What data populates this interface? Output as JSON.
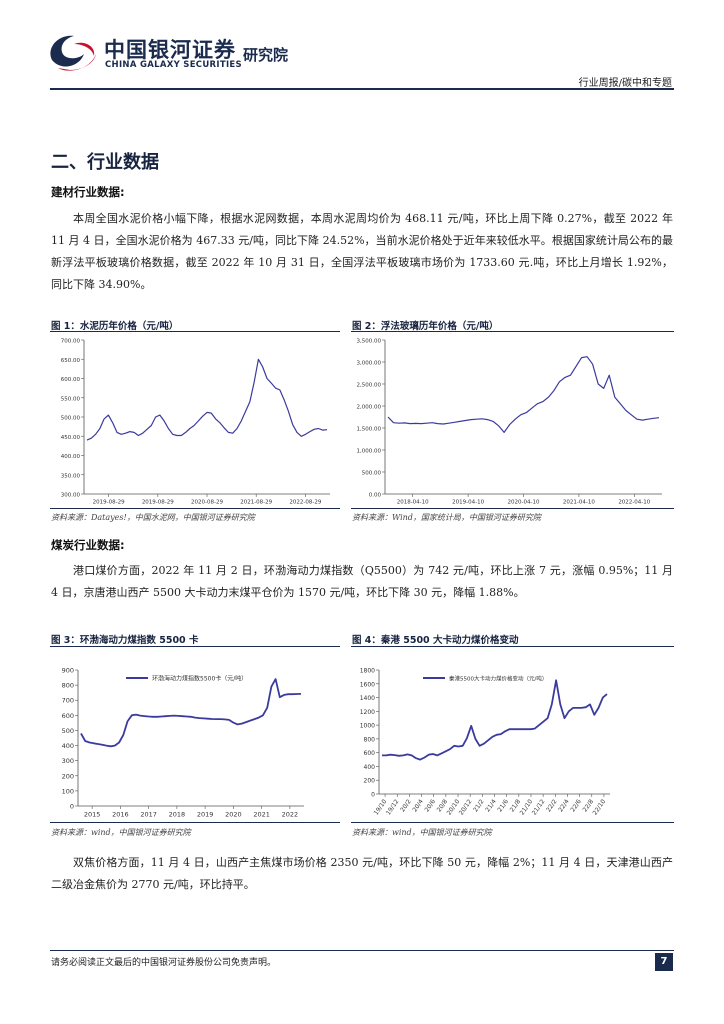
{
  "header": {
    "company_cn": "中国银河证券",
    "company_en": "CHINA GALAXY SECURITIES",
    "institute": "研究院",
    "report_type": "行业周报/碳中和专题"
  },
  "section_title": "二、行业数据",
  "building": {
    "heading": "建材行业数据:",
    "para": "本周全国水泥价格小幅下降，根据水泥网数据，本周水泥周均价为 468.11 元/吨，环比上周下降 0.27%，截至 2022 年 11 月 4 日，全国水泥价格为 467.33 元/吨，同比下降 24.52%，当前水泥价格处于近年来较低水平。根据国家统计局公布的最新浮法平板玻璃价格数据，截至 2022 年 10 月 31 日，全国浮法平板玻璃市场价为 1733.60 元.吨，环比上月增长 1.92%，同比下降 34.90%。"
  },
  "fig1": {
    "title": "图 1：水泥历年价格（元/吨）",
    "source": "资料来源：Datayes!，中国水泥网，中国银河证券研究院"
  },
  "fig2": {
    "title": "图 2：浮法玻璃历年价格（元/吨）",
    "source": "资料来源：Wind，国家统计局，中国银河证券研究院"
  },
  "coal": {
    "heading": "煤炭行业数据:",
    "para": "港口煤价方面，2022 年 11 月 2 日，环渤海动力煤指数（Q5500）为 742 元/吨，环比上涨 7 元，涨幅 0.95%；11 月 4 日，京唐港山西产 5500 大卡动力末煤平仓价为 1570 元/吨，环比下降 30 元，降幅 1.88%。"
  },
  "fig3": {
    "title": "图 3：环渤海动力煤指数 5500 卡",
    "source": "资料来源：wind，中国银河证券研究院"
  },
  "fig4": {
    "title": "图 4：秦港 5500 大卡动力煤价格变动",
    "source": "资料来源：wind，中国银河证券研究院"
  },
  "coke": {
    "para": "双焦价格方面，11 月 4 日，山西产主焦煤市场价格 2350 元/吨，环比下降 50 元，降幅 2%；11 月 4 日，天津港山西产二级冶金焦价为 2770 元/吨，环比持平。"
  },
  "footer": {
    "disclaimer": "请务必阅读正文最后的中国银河证券股份公司免责声明。",
    "page": "7"
  },
  "colors": {
    "brand": "#1b2b4e",
    "accent_red": "#c8102e",
    "series": "#3b3b9e"
  },
  "chart_data": [
    {
      "type": "line",
      "ylim": [
        300,
        700
      ],
      "yticks": [
        "300.00",
        "350.00",
        "400.00",
        "450.00",
        "500.00",
        "550.00",
        "600.00",
        "650.00",
        "700.00"
      ],
      "xticks": [
        "2019-08-29",
        "2019-08-29",
        "2020-08-29",
        "2021-08-29",
        "2022-08-29"
      ],
      "series": [
        {
          "values": [
            440,
            445,
            455,
            470,
            495,
            505,
            485,
            460,
            455,
            458,
            462,
            460,
            452,
            458,
            468,
            478,
            500,
            505,
            490,
            470,
            455,
            452,
            452,
            460,
            470,
            478,
            490,
            502,
            512,
            510,
            495,
            485,
            472,
            460,
            458,
            470,
            490,
            515,
            540,
            590,
            650,
            630,
            600,
            588,
            575,
            570,
            545,
            515,
            480,
            460,
            450,
            455,
            462,
            468,
            470,
            466,
            467
          ]
        }
      ]
    },
    {
      "type": "line",
      "ylim": [
        0,
        3500
      ],
      "yticks": [
        "0.00",
        "500.00",
        "1,000.00",
        "1,500.00",
        "2,000.00",
        "2,500.00",
        "3,000.00",
        "3,500.00"
      ],
      "xticks": [
        "2018-04-10",
        "2019-04-10",
        "2020-04-10",
        "2021-04-10",
        "2022-04-10"
      ],
      "series": [
        {
          "values": [
            1750,
            1620,
            1610,
            1615,
            1600,
            1605,
            1600,
            1610,
            1620,
            1600,
            1590,
            1610,
            1630,
            1650,
            1670,
            1690,
            1700,
            1710,
            1690,
            1650,
            1550,
            1400,
            1580,
            1700,
            1800,
            1850,
            1950,
            2050,
            2100,
            2200,
            2350,
            2550,
            2650,
            2700,
            2900,
            3100,
            3120,
            2950,
            2500,
            2400,
            2700,
            2200,
            2050,
            1900,
            1800,
            1700,
            1680,
            1700,
            1720,
            1734
          ]
        }
      ]
    },
    {
      "type": "line",
      "ylim": [
        0,
        900
      ],
      "yticks": [
        "0",
        "100",
        "200",
        "300",
        "400",
        "500",
        "600",
        "700",
        "800",
        "900"
      ],
      "xticks": [
        "2015",
        "2016",
        "2017",
        "2018",
        "2019",
        "2020",
        "2021",
        "2022"
      ],
      "legend": "环渤海动力煤指数5500卡（元/吨）",
      "series": [
        {
          "values": [
            480,
            430,
            420,
            415,
            410,
            405,
            400,
            395,
            400,
            420,
            470,
            560,
            600,
            605,
            598,
            595,
            592,
            590,
            590,
            592,
            594,
            596,
            598,
            596,
            594,
            592,
            590,
            585,
            582,
            580,
            578,
            576,
            575,
            575,
            573,
            570,
            552,
            540,
            545,
            555,
            565,
            575,
            585,
            600,
            650,
            790,
            840,
            720,
            735,
            740,
            740,
            741,
            742
          ]
        }
      ]
    },
    {
      "type": "line",
      "ylim": [
        0,
        1800
      ],
      "yticks": [
        "0",
        "200",
        "400",
        "600",
        "800",
        "1000",
        "1200",
        "1400",
        "1600",
        "1800"
      ],
      "xticks": [
        "19/10",
        "19/12",
        "20/2",
        "20/4",
        "20/6",
        "20/8",
        "20/10",
        "20/12",
        "21/2",
        "21/4",
        "21/6",
        "21/8",
        "21/10",
        "21/12",
        "22/2",
        "22/4",
        "22/6",
        "22/8",
        "22/10"
      ],
      "legend": "秦港5500大卡动力煤价格变动（元/吨）",
      "series": [
        {
          "values": [
            560,
            560,
            570,
            565,
            555,
            560,
            575,
            560,
            520,
            500,
            530,
            570,
            580,
            560,
            590,
            620,
            650,
            700,
            690,
            700,
            810,
            990,
            800,
            700,
            730,
            780,
            830,
            860,
            870,
            910,
            940,
            940,
            940,
            940,
            940,
            940,
            950,
            1000,
            1050,
            1100,
            1300,
            1650,
            1300,
            1100,
            1200,
            1250,
            1250,
            1250,
            1260,
            1300,
            1150,
            1250,
            1400,
            1450
          ]
        }
      ]
    }
  ]
}
